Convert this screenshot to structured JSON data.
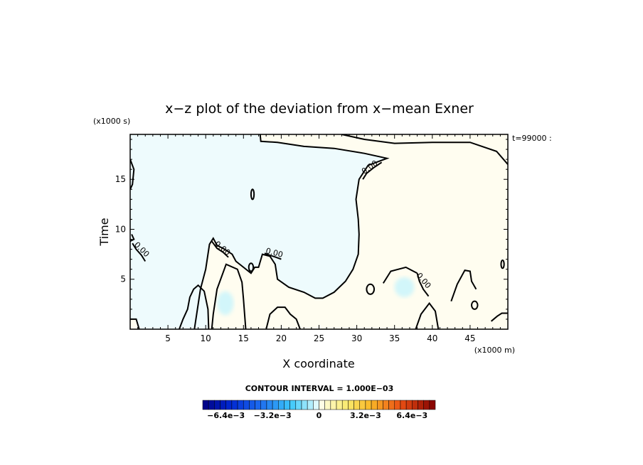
{
  "chart_data": {
    "type": "heatmap",
    "title": "x−z plot of the deviation from x−mean Exner",
    "xlabel": "X coordinate",
    "ylabel": "Time",
    "x_units": "(x1000 m)",
    "y_units": "(x1000 s)",
    "time_annotation": "t=99000 :",
    "xlim": [
      0,
      50
    ],
    "ylim": [
      0,
      19.5
    ],
    "x_ticks": [
      5,
      10,
      15,
      20,
      25,
      30,
      35,
      40,
      45
    ],
    "x_tick_labels": [
      "5",
      "10",
      "15",
      "20",
      "25",
      "30",
      "35",
      "40",
      "45"
    ],
    "y_ticks": [
      5,
      10,
      15
    ],
    "y_tick_labels": [
      "5",
      "10",
      "15"
    ],
    "contour_label": "0.00",
    "contour_interval_label": "CONTOUR INTERVAL = 1.000E−03",
    "colorbar": {
      "range": [
        -0.008,
        0.008
      ],
      "tick_values": [
        -0.0064,
        -0.0032,
        0,
        0.0032,
        0.0064
      ],
      "tick_labels": [
        "−6.4e−3",
        "−3.2e−3",
        "0",
        "3.2e−3",
        "6.4e−3"
      ]
    },
    "regions": [
      {
        "name": "negative",
        "color": "#eefbfd"
      },
      {
        "name": "positive",
        "color": "#fffdf0"
      },
      {
        "name": "strong-negative",
        "color": "#d2f6fa"
      }
    ],
    "zero_contour_main": [
      [
        17.2,
        19.5
      ],
      [
        17.3,
        18.8
      ],
      [
        19.5,
        18.7
      ],
      [
        23,
        18.3
      ],
      [
        27,
        18.1
      ],
      [
        31,
        17.6
      ],
      [
        34,
        17.1
      ],
      [
        31.5,
        16.4
      ],
      [
        30.3,
        15
      ],
      [
        29.9,
        13
      ],
      [
        30.2,
        11
      ],
      [
        30.3,
        9.5
      ],
      [
        30.2,
        7.5
      ],
      [
        29.5,
        6
      ],
      [
        28.5,
        4.8
      ],
      [
        27,
        3.7
      ],
      [
        25.5,
        3.1
      ],
      [
        24.5,
        3.1
      ],
      [
        23,
        3.7
      ],
      [
        21,
        4.2
      ],
      [
        19.5,
        5
      ],
      [
        19.2,
        6.5
      ],
      [
        18.5,
        7.3
      ],
      [
        17.5,
        7.5
      ],
      [
        17,
        6.2
      ],
      [
        16.5,
        6.2
      ],
      [
        16,
        5.6
      ],
      [
        15,
        6.2
      ],
      [
        14,
        6.8
      ],
      [
        13.5,
        7.5
      ],
      [
        12.5,
        8
      ],
      [
        11.5,
        8.4
      ],
      [
        11,
        9.1
      ],
      [
        10.5,
        8.5
      ],
      [
        10,
        6
      ],
      [
        9.3,
        4
      ],
      [
        8.8,
        1.5
      ],
      [
        8.5,
        0
      ]
    ],
    "zero_contour_extra": [
      [
        [
          30.8,
          15
        ],
        [
          31.3,
          15.6
        ],
        [
          32.3,
          16.2
        ],
        [
          33.3,
          16.7
        ]
      ],
      [
        [
          0.3,
          8.6
        ],
        [
          0.8,
          8
        ],
        [
          1.5,
          7.4
        ],
        [
          2,
          6.8
        ]
      ],
      [
        [
          10.8,
          8.8
        ],
        [
          11.5,
          8.1
        ],
        [
          12.3,
          7.7
        ],
        [
          13,
          7.2
        ]
      ],
      [
        [
          17.8,
          7.6
        ],
        [
          18.5,
          7.4
        ],
        [
          19.3,
          7.2
        ],
        [
          20,
          7
        ]
      ],
      [
        [
          38,
          5.6
        ],
        [
          38.3,
          4.8
        ],
        [
          38.8,
          4
        ],
        [
          39.5,
          3.3
        ]
      ],
      [
        [
          0,
          17
        ],
        [
          0.5,
          16
        ],
        [
          0.3,
          14.5
        ],
        [
          0,
          14
        ]
      ],
      [
        [
          0,
          8.8
        ],
        [
          0.5,
          9
        ],
        [
          0.2,
          9.5
        ]
      ],
      [
        [
          28,
          19.5
        ],
        [
          31,
          19
        ],
        [
          35,
          18.6
        ],
        [
          40,
          18.7
        ],
        [
          45,
          18.7
        ],
        [
          48.5,
          17.8
        ],
        [
          50,
          16.5
        ]
      ],
      [
        [
          6.5,
          0
        ],
        [
          7,
          1
        ],
        [
          7.6,
          2
        ],
        [
          7.9,
          3.2
        ],
        [
          8.4,
          4
        ],
        [
          9,
          4.4
        ],
        [
          9.8,
          3.8
        ],
        [
          10.3,
          2
        ],
        [
          10.4,
          0
        ]
      ],
      [
        [
          10.8,
          0
        ],
        [
          11,
          1.5
        ],
        [
          11.5,
          4
        ],
        [
          12.7,
          6.5
        ],
        [
          14.2,
          6
        ],
        [
          14.8,
          4.7
        ],
        [
          15,
          3
        ],
        [
          15.3,
          0
        ]
      ],
      [
        [
          18,
          0
        ],
        [
          18.5,
          1.5
        ],
        [
          19.5,
          2.2
        ],
        [
          20.5,
          2.2
        ],
        [
          21.2,
          1.5
        ],
        [
          22,
          1
        ],
        [
          22.5,
          0
        ]
      ],
      [
        [
          33.5,
          4.6
        ],
        [
          34.5,
          5.8
        ],
        [
          36.5,
          6.2
        ],
        [
          38,
          5.6
        ]
      ],
      [
        [
          37.8,
          0
        ],
        [
          38.5,
          1.5
        ],
        [
          39.6,
          2.6
        ],
        [
          40.4,
          1.8
        ],
        [
          40.8,
          0
        ]
      ],
      [
        [
          42.5,
          2.8
        ],
        [
          43.3,
          4.5
        ],
        [
          44.3,
          5.9
        ],
        [
          45,
          5.8
        ],
        [
          45.2,
          4.8
        ],
        [
          45.8,
          4
        ]
      ],
      [
        [
          47.8,
          0.8
        ],
        [
          48.6,
          1.3
        ],
        [
          49.2,
          1.6
        ],
        [
          50,
          1.6
        ]
      ],
      [
        [
          0,
          1
        ],
        [
          0.8,
          1
        ],
        [
          1.2,
          0
        ]
      ]
    ],
    "small_loops": [
      [
        16.2,
        13.5,
        0.2,
        0.5
      ],
      [
        31.8,
        4.0,
        0.5,
        0.5
      ],
      [
        45.6,
        2.4,
        0.4,
        0.4
      ],
      [
        49.3,
        6.5,
        0.2,
        0.4
      ],
      [
        16.0,
        6.2,
        0.3,
        0.4
      ]
    ]
  }
}
